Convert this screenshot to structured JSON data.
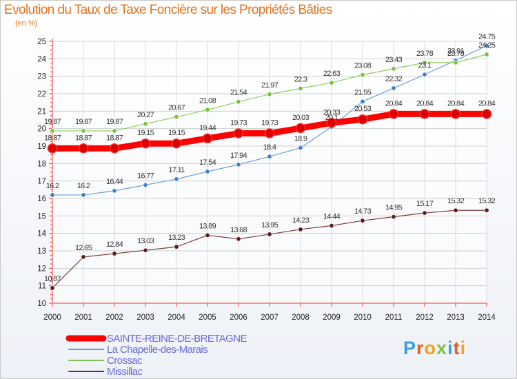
{
  "header": {
    "title": "Evolution du Taux de Taxe Foncière sur les Propriétés Bâties",
    "subtitle": "(en %)"
  },
  "logo": {
    "text": "Proxiti",
    "colors": [
      "#3aa0d8",
      "#e85c1c",
      "#f0a31c",
      "#7cc242"
    ]
  },
  "chart_data": {
    "type": "line",
    "x": [
      2000,
      2001,
      2002,
      2003,
      2004,
      2005,
      2006,
      2007,
      2008,
      2009,
      2010,
      2011,
      2012,
      2013,
      2014
    ],
    "xticks": [
      "2000",
      "2001",
      "2002",
      "2003",
      "2004",
      "2005",
      "2006",
      "2007",
      "2008",
      "2009",
      "2010",
      "2011",
      "2012",
      "2013",
      "2014"
    ],
    "yticks": [
      "10",
      "11",
      "12",
      "13",
      "14",
      "15",
      "16",
      "17",
      "18",
      "19",
      "20",
      "21",
      "22",
      "23",
      "24",
      "25"
    ],
    "ylim": [
      10,
      25
    ],
    "grid": true,
    "legend_position": "bottom-left",
    "series": [
      {
        "name": "SAINTE-REINE-DE-BRETAGNE",
        "color": "#ff0000",
        "line_color": "#ff0000",
        "point_color": "#d90000",
        "width": 9,
        "values": [
          18.87,
          18.87,
          18.87,
          19.15,
          19.15,
          19.44,
          19.73,
          19.73,
          20.03,
          20.33,
          20.53,
          20.84,
          20.84,
          20.84,
          20.84
        ],
        "labels": [
          "18.87",
          "18.87",
          "18.87",
          "19.15",
          "19.15",
          "19.44",
          "19.73",
          "19.73",
          "20.03",
          "20.33",
          "20.53",
          "20.84",
          "20.84",
          "20.84",
          "20.84"
        ]
      },
      {
        "name": "La Chapelle-des-Marais",
        "color": "#6699cc",
        "line_color": "#6b9fd4",
        "point_color": "#3f80c4",
        "width": 1.2,
        "values": [
          16.2,
          16.2,
          16.44,
          16.77,
          17.11,
          17.54,
          17.94,
          18.4,
          18.9,
          20.1,
          21.55,
          22.32,
          23.1,
          23.91,
          24.75
        ],
        "labels": [
          "16.2",
          "16.2",
          "16.44",
          "16.77",
          "17.11",
          "17.54",
          "17.94",
          "18.4",
          "18.9",
          "20.1",
          "21.55",
          "22.32",
          "23.1",
          "23.91",
          "24.75"
        ]
      },
      {
        "name": "Crossac",
        "color": "#80c050",
        "line_color": "#8ccc57",
        "point_color": "#79c23f",
        "width": 1.2,
        "values": [
          19.87,
          19.87,
          19.87,
          20.27,
          20.67,
          21.08,
          21.54,
          21.97,
          22.3,
          22.63,
          23.08,
          23.43,
          23.78,
          23.78,
          24.25
        ],
        "labels": [
          "19.87",
          "19.87",
          "19.87",
          "20.27",
          "20.67",
          "21.08",
          "21.54",
          "21.97",
          "22.3",
          "22.63",
          "23.08",
          "23.43",
          "23.78",
          "23.78",
          "24.25"
        ]
      },
      {
        "name": "Missillac",
        "color": "#6a2a2a",
        "line_color": "#7a3a3a",
        "point_color": "#5a1a1a",
        "width": 1.2,
        "values": [
          10.87,
          12.65,
          12.84,
          13.03,
          13.23,
          13.89,
          13.68,
          13.95,
          14.23,
          14.44,
          14.73,
          14.95,
          15.17,
          15.32,
          15.32
        ],
        "labels": [
          "10.87",
          "12.65",
          "12.84",
          "13.03",
          "13.23",
          "13.89",
          "13.68",
          "13.95",
          "14.23",
          "14.44",
          "14.73",
          "14.95",
          "15.17",
          "15.32",
          "15.32"
        ]
      }
    ]
  }
}
